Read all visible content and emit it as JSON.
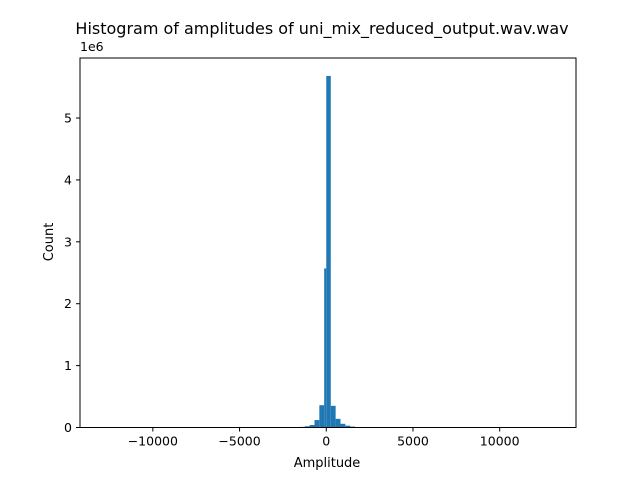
{
  "chart_data": {
    "type": "bar",
    "title": "Histogram of amplitudes of uni_mix_reduced_output.wav.wav",
    "xlabel": "Amplitude",
    "ylabel": "Count",
    "y_offset_label": "1e6",
    "xlim": [
      -14200,
      14400
    ],
    "ylim": [
      0,
      5.97
    ],
    "x_ticks": [
      -10000,
      -5000,
      0,
      5000,
      10000
    ],
    "x_tick_labels": [
      "−10000",
      "−5000",
      "0",
      "5000",
      "10000"
    ],
    "y_ticks": [
      0,
      1,
      2,
      3,
      4,
      5
    ],
    "y_tick_labels": [
      "0",
      "1",
      "2",
      "3",
      "4",
      "5"
    ],
    "y_unit_multiplier": 1000000,
    "bar_color": "#1f77b4",
    "grid": false,
    "bins": [
      {
        "x0": -1800,
        "x1": -1520,
        "count": 0.005
      },
      {
        "x0": -1520,
        "x1": -1240,
        "count": 0.01
      },
      {
        "x0": -1240,
        "x1": -960,
        "count": 0.02
      },
      {
        "x0": -960,
        "x1": -680,
        "count": 0.04
      },
      {
        "x0": -680,
        "x1": -400,
        "count": 0.12
      },
      {
        "x0": -400,
        "x1": -120,
        "count": 0.36
      },
      {
        "x0": -120,
        "x1": 0,
        "count": 2.57
      },
      {
        "x0": 0,
        "x1": 260,
        "count": 5.68
      },
      {
        "x0": 260,
        "x1": 540,
        "count": 0.35
      },
      {
        "x0": 540,
        "x1": 820,
        "count": 0.14
      },
      {
        "x0": 820,
        "x1": 1100,
        "count": 0.06
      },
      {
        "x0": 1100,
        "x1": 1380,
        "count": 0.03
      },
      {
        "x0": 1380,
        "x1": 1660,
        "count": 0.015
      },
      {
        "x0": 1660,
        "x1": 1940,
        "count": 0.007
      }
    ]
  }
}
